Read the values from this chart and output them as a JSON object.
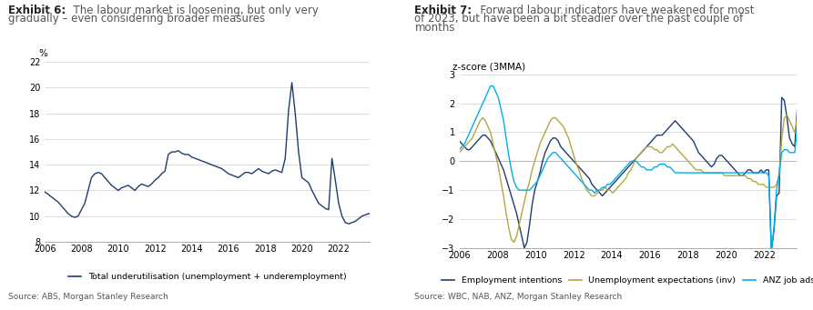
{
  "fig6": {
    "ylabel": "%",
    "ylim": [
      8,
      22
    ],
    "yticks": [
      8,
      10,
      12,
      14,
      16,
      18,
      20,
      22
    ],
    "xlim": [
      2006.0,
      2023.7
    ],
    "xticks": [
      2006,
      2008,
      2010,
      2012,
      2014,
      2016,
      2018,
      2020,
      2022
    ],
    "line_color": "#1f3d6e",
    "legend_label": "Total underutilisation (unemployment + underemployment)",
    "source": "Source: ABS, Morgan Stanley Research",
    "underutil": [
      11.9,
      11.7,
      11.5,
      11.3,
      11.1,
      10.8,
      10.5,
      10.2,
      10.0,
      9.9,
      10.0,
      10.5,
      11.0,
      12.0,
      13.0,
      13.3,
      13.4,
      13.3,
      13.0,
      12.7,
      12.4,
      12.2,
      12.0,
      12.2,
      12.3,
      12.4,
      12.2,
      12.0,
      12.3,
      12.5,
      12.4,
      12.3,
      12.5,
      12.8,
      13.0,
      13.3,
      13.5,
      14.8,
      15.0,
      15.0,
      15.1,
      14.9,
      14.8,
      14.8,
      14.6,
      14.5,
      14.4,
      14.3,
      14.2,
      14.1,
      14.0,
      13.9,
      13.8,
      13.7,
      13.5,
      13.3,
      13.2,
      13.1,
      13.0,
      13.2,
      13.4,
      13.4,
      13.3,
      13.5,
      13.7,
      13.5,
      13.4,
      13.3,
      13.5,
      13.6,
      13.5,
      13.4,
      14.5,
      18.2,
      20.4,
      18.0,
      15.0,
      13.0,
      12.8,
      12.6,
      12.0,
      11.5,
      11.0,
      10.8,
      10.6,
      10.5,
      14.5,
      12.8,
      11.0,
      10.0,
      9.5,
      9.4,
      9.5,
      9.6,
      9.8,
      10.0,
      10.1,
      10.2,
      10.1
    ],
    "n_points": 99,
    "x_start": 2006.0,
    "x_step": 0.1818
  },
  "fig7": {
    "ylabel": "z-score (3MMA)",
    "ylim": [
      -3,
      3
    ],
    "yticks": [
      -3,
      -2,
      -1,
      0,
      1,
      2,
      3
    ],
    "xlim": [
      2006.0,
      2023.7
    ],
    "xticks": [
      2006,
      2008,
      2010,
      2012,
      2014,
      2016,
      2018,
      2020,
      2022
    ],
    "color_emp": "#1f3d6e",
    "color_unemp": "#b5a642",
    "color_anz": "#00aeef",
    "source": "Source: WBC, NAB, ANZ, Morgan Stanley Research",
    "employment_intentions": [
      0.7,
      0.6,
      0.5,
      0.4,
      0.4,
      0.5,
      0.6,
      0.7,
      0.8,
      0.9,
      0.9,
      0.8,
      0.7,
      0.5,
      0.3,
      0.1,
      -0.1,
      -0.3,
      -0.6,
      -0.9,
      -1.2,
      -1.5,
      -1.8,
      -2.2,
      -2.6,
      -3.0,
      -2.8,
      -2.2,
      -1.5,
      -1.0,
      -0.7,
      -0.4,
      0.0,
      0.3,
      0.5,
      0.7,
      0.8,
      0.8,
      0.7,
      0.5,
      0.4,
      0.3,
      0.2,
      0.1,
      0.0,
      -0.1,
      -0.2,
      -0.3,
      -0.4,
      -0.5,
      -0.6,
      -0.8,
      -0.9,
      -1.0,
      -1.1,
      -1.2,
      -1.1,
      -1.0,
      -0.9,
      -0.8,
      -0.7,
      -0.6,
      -0.5,
      -0.4,
      -0.3,
      -0.2,
      -0.1,
      0.0,
      0.1,
      0.2,
      0.3,
      0.4,
      0.5,
      0.6,
      0.7,
      0.8,
      0.9,
      0.9,
      0.9,
      1.0,
      1.1,
      1.2,
      1.3,
      1.4,
      1.3,
      1.2,
      1.1,
      1.0,
      0.9,
      0.8,
      0.7,
      0.5,
      0.3,
      0.2,
      0.1,
      0.0,
      -0.1,
      -0.2,
      -0.1,
      0.1,
      0.2,
      0.2,
      0.1,
      0.0,
      -0.1,
      -0.2,
      -0.3,
      -0.4,
      -0.5,
      -0.5,
      -0.4,
      -0.3,
      -0.3,
      -0.4,
      -0.4,
      -0.4,
      -0.3,
      -0.4,
      -0.3,
      -0.3,
      -3.1,
      -2.4,
      -1.2,
      -1.1,
      2.2,
      2.1,
      1.5,
      0.8,
      0.6,
      0.5,
      1.9,
      1.5,
      1.2,
      1.0,
      0.7,
      0.6,
      0.5
    ],
    "unemployment_expectations": [
      0.3,
      0.4,
      0.5,
      0.6,
      0.7,
      0.8,
      1.0,
      1.2,
      1.4,
      1.5,
      1.4,
      1.2,
      1.0,
      0.6,
      0.2,
      -0.2,
      -0.7,
      -1.2,
      -1.8,
      -2.3,
      -2.7,
      -2.8,
      -2.6,
      -2.2,
      -1.8,
      -1.4,
      -1.0,
      -0.7,
      -0.3,
      0.0,
      0.3,
      0.6,
      0.8,
      1.0,
      1.2,
      1.4,
      1.5,
      1.5,
      1.4,
      1.3,
      1.2,
      1.0,
      0.8,
      0.5,
      0.2,
      -0.1,
      -0.3,
      -0.6,
      -0.8,
      -1.0,
      -1.1,
      -1.2,
      -1.2,
      -1.1,
      -1.0,
      -1.0,
      -0.9,
      -1.0,
      -1.0,
      -1.1,
      -1.0,
      -0.9,
      -0.8,
      -0.7,
      -0.6,
      -0.4,
      -0.3,
      -0.1,
      0.1,
      0.2,
      0.3,
      0.4,
      0.5,
      0.5,
      0.5,
      0.4,
      0.4,
      0.3,
      0.3,
      0.4,
      0.5,
      0.5,
      0.6,
      0.5,
      0.4,
      0.3,
      0.2,
      0.1,
      0.0,
      -0.1,
      -0.2,
      -0.3,
      -0.3,
      -0.3,
      -0.4,
      -0.4,
      -0.4,
      -0.4,
      -0.4,
      -0.4,
      -0.4,
      -0.4,
      -0.5,
      -0.5,
      -0.5,
      -0.5,
      -0.5,
      -0.5,
      -0.5,
      -0.5,
      -0.5,
      -0.6,
      -0.6,
      -0.7,
      -0.7,
      -0.8,
      -0.8,
      -0.8,
      -0.9,
      -0.9,
      -0.9,
      -0.9,
      -0.8,
      -0.5,
      0.8,
      1.5,
      1.6,
      1.4,
      1.2,
      1.0,
      1.5,
      1.3,
      1.1,
      0.9,
      0.7,
      0.5,
      0.2
    ],
    "anz_job_ads": [
      0.4,
      0.5,
      0.6,
      0.8,
      1.0,
      1.2,
      1.4,
      1.6,
      1.8,
      2.0,
      2.2,
      2.4,
      2.6,
      2.6,
      2.4,
      2.2,
      1.8,
      1.4,
      0.8,
      0.2,
      -0.3,
      -0.7,
      -0.9,
      -1.0,
      -1.0,
      -1.0,
      -1.0,
      -1.0,
      -0.9,
      -0.8,
      -0.7,
      -0.5,
      -0.3,
      -0.1,
      0.1,
      0.2,
      0.3,
      0.3,
      0.2,
      0.1,
      0.0,
      -0.1,
      -0.2,
      -0.3,
      -0.4,
      -0.5,
      -0.6,
      -0.7,
      -0.8,
      -0.9,
      -1.0,
      -1.0,
      -1.1,
      -1.0,
      -1.0,
      -0.9,
      -0.9,
      -0.8,
      -0.8,
      -0.7,
      -0.6,
      -0.5,
      -0.4,
      -0.3,
      -0.2,
      -0.1,
      0.0,
      0.0,
      0.0,
      -0.1,
      -0.2,
      -0.2,
      -0.3,
      -0.3,
      -0.3,
      -0.2,
      -0.2,
      -0.1,
      -0.1,
      -0.1,
      -0.2,
      -0.2,
      -0.3,
      -0.4,
      -0.4,
      -0.4,
      -0.4,
      -0.4,
      -0.4,
      -0.4,
      -0.4,
      -0.4,
      -0.4,
      -0.4,
      -0.4,
      -0.4,
      -0.4,
      -0.4,
      -0.4,
      -0.4,
      -0.4,
      -0.4,
      -0.4,
      -0.4,
      -0.4,
      -0.4,
      -0.4,
      -0.4,
      -0.4,
      -0.4,
      -0.4,
      -0.4,
      -0.4,
      -0.4,
      -0.4,
      -0.4,
      -0.4,
      -0.4,
      -0.4,
      -0.5,
      -3.1,
      -2.3,
      -1.0,
      -0.4,
      0.3,
      0.4,
      0.4,
      0.3,
      0.3,
      0.3,
      1.2,
      1.2,
      1.0,
      0.8,
      0.5,
      0.4,
      0.5
    ],
    "n_points": 137,
    "x_start": 2006.0,
    "x_step": 0.1364
  },
  "title6_bold": "Exhibit 6:",
  "title6_normal": "  The labour market is loosening, but only very",
  "title6_line2": "gradually – even considering broader measures",
  "title7_bold": "Exhibit 7:",
  "title7_normal": "  Forward labour indicators have weakened for most",
  "title7_line2": "of 2023, but have been a bit steadier over the past couple of",
  "title7_line3": "months",
  "source6": "Source: ABS, Morgan Stanley Research",
  "source7": "Source: WBC, NAB, ANZ, Morgan Stanley Research",
  "title_fontsize": 8.5,
  "tick_fontsize": 7,
  "legend_fontsize": 6.8,
  "source_fontsize": 6.5,
  "ylabel_fontsize": 7.5,
  "line_color6": "#1f3d6e",
  "color_emp": "#1f3d6e",
  "color_unemp": "#b5a642",
  "color_anz": "#00aeef",
  "legend_label6": "Total underutilisation (unemployment + underemployment)",
  "legend_labels7": [
    "Employment intentions",
    "Unemployment expectations (inv)",
    "ANZ job ads"
  ]
}
